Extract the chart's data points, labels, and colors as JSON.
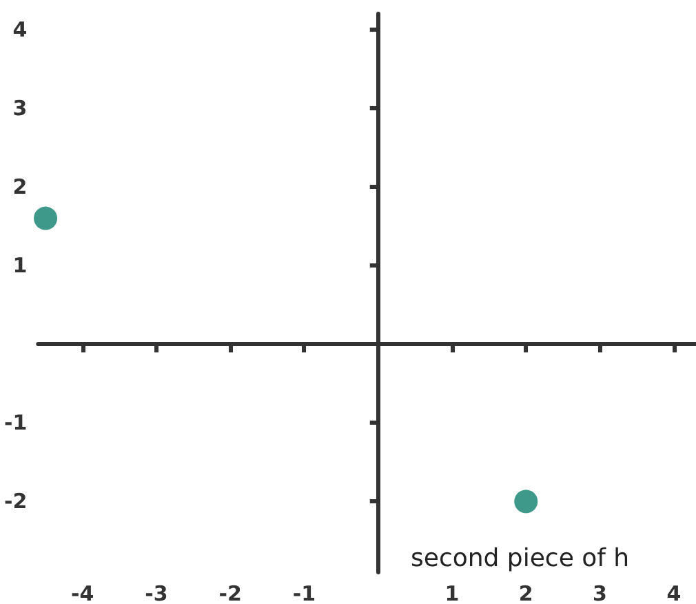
{
  "chart_data": {
    "type": "scatter",
    "x": [
      -4.5,
      2
    ],
    "values": [
      1.6,
      -2
    ],
    "color": "#0e7f6e",
    "marker": "circle",
    "grid": false,
    "xlim": [
      -4.6,
      4.3
    ],
    "ylim": [
      -2.9,
      4.2
    ],
    "xticks": [
      -4,
      -3,
      -2,
      -1,
      1,
      2,
      3,
      4
    ],
    "yticks": [
      -2,
      -1,
      1,
      2,
      3,
      4
    ],
    "annotations": [
      "second piece of h"
    ]
  }
}
